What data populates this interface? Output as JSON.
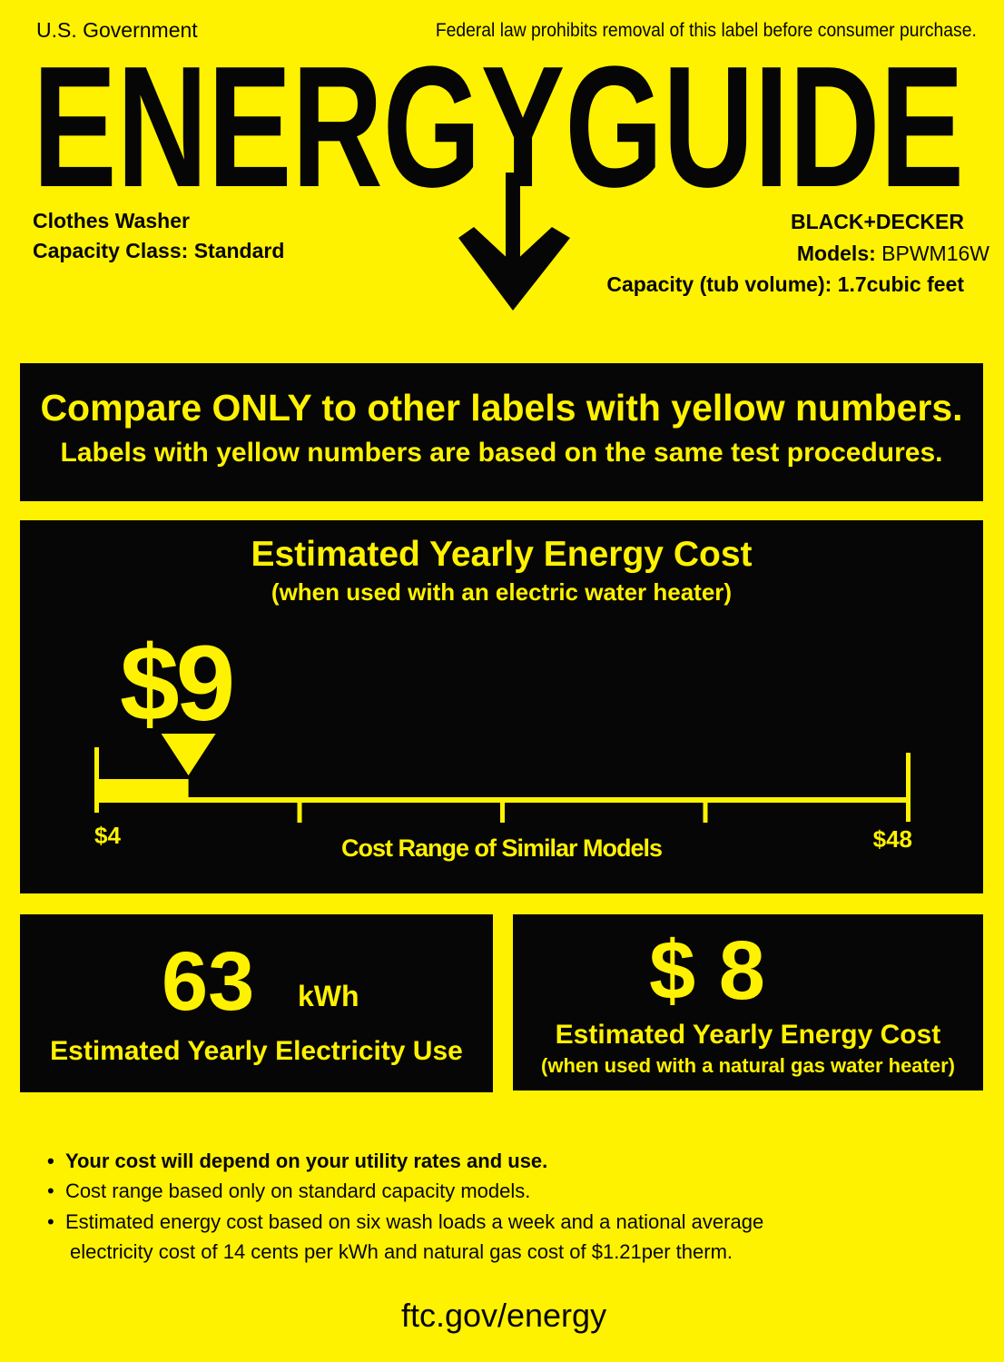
{
  "header": {
    "issuer": "U.S. Government",
    "notice": "Federal law prohibits removal of this label before consumer purchase.",
    "title": "ENERGYGUIDE"
  },
  "product": {
    "type": "Clothes Washer",
    "capacity_class": "Capacity Class: Standard",
    "brand": "BLACK+DECKER",
    "models_label": "Models:",
    "model": "BPWM16W",
    "capacity_label": "Capacity (tub volume):",
    "capacity_value": "1.7cubic feet"
  },
  "compare": {
    "line1": "Compare ONLY to other labels with yellow numbers.",
    "line2": "Labels with yellow numbers are based on the same test procedures."
  },
  "cost": {
    "title": "Estimated Yearly Energy Cost",
    "subtitle": "(when used with an electric water heater)",
    "value": "$9",
    "value_number": 9,
    "range_min": 4,
    "range_max": 48,
    "min_label": "$4",
    "max_label": "$48",
    "range_caption": "Cost Range of Similar Models"
  },
  "electricity": {
    "value": "63",
    "unit": "kWh",
    "label": "Estimated Yearly Electricity Use"
  },
  "gas": {
    "value": "$ 8",
    "title": "Estimated Yearly Energy Cost",
    "subtitle": "(when used with a natural gas water heater)"
  },
  "notes": [
    "Your cost will depend on your utility rates and use.",
    "Cost range based only on standard capacity models.",
    "Estimated energy cost based on six wash loads a week and a national average",
    "electricity cost of 14 cents per kWh and natural gas cost of $1.21per therm."
  ],
  "footer": {
    "link": "ftc.gov/energy"
  },
  "colors": {
    "background": "#fff200",
    "panel": "#060606"
  }
}
